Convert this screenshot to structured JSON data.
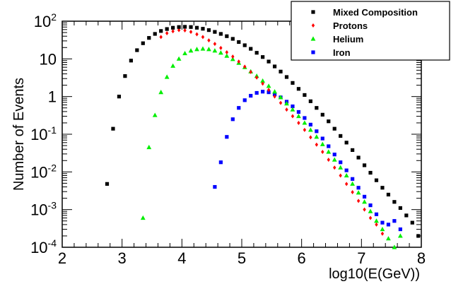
{
  "chart_data": {
    "type": "scatter",
    "xlabel": "log10(E(GeV))",
    "ylabel": "Number of Events",
    "xlim": [
      2,
      8
    ],
    "ylim": [
      0.0001,
      100
    ],
    "yscale": "log",
    "x_ticks": [
      {
        "value": 2,
        "label": "2"
      },
      {
        "value": 3,
        "label": "3"
      },
      {
        "value": 4,
        "label": "4"
      },
      {
        "value": 5,
        "label": "5"
      },
      {
        "value": 6,
        "label": "6"
      },
      {
        "value": 7,
        "label": "7"
      },
      {
        "value": 8,
        "label": "8"
      }
    ],
    "y_ticks": [
      {
        "value": 100,
        "base": "10",
        "exp": "2"
      },
      {
        "value": 10,
        "base": "10",
        "exp": ""
      },
      {
        "value": 1,
        "base": "1",
        "exp": ""
      },
      {
        "value": 0.1,
        "base": "10",
        "exp": "-1"
      },
      {
        "value": 0.01,
        "base": "10",
        "exp": "-2"
      },
      {
        "value": 0.001,
        "base": "10",
        "exp": "-3"
      },
      {
        "value": 0.0001,
        "base": "10",
        "exp": "-4"
      }
    ],
    "legend_position": "top-right",
    "series": [
      {
        "name": "Mixed Composition",
        "color": "#000000",
        "marker": "square",
        "x": [
          2.75,
          2.85,
          2.95,
          3.05,
          3.15,
          3.25,
          3.35,
          3.45,
          3.55,
          3.65,
          3.75,
          3.85,
          3.95,
          4.05,
          4.15,
          4.25,
          4.35,
          4.45,
          4.55,
          4.65,
          4.75,
          4.85,
          4.95,
          5.05,
          5.15,
          5.25,
          5.35,
          5.45,
          5.55,
          5.65,
          5.75,
          5.85,
          5.95,
          6.05,
          6.15,
          6.25,
          6.35,
          6.45,
          6.55,
          6.65,
          6.75,
          6.85,
          6.95,
          7.05,
          7.15,
          7.25,
          7.35,
          7.45,
          7.55,
          7.65,
          7.75,
          7.85,
          7.95
        ],
        "y": [
          0.0048,
          0.14,
          1.0,
          3.5,
          9,
          17,
          26,
          36,
          46,
          55,
          62,
          67,
          70,
          71,
          70,
          67,
          63,
          58,
          52,
          46,
          40,
          34,
          28,
          23,
          18.5,
          14.5,
          11.2,
          8.5,
          6.3,
          4.6,
          3.3,
          2.3,
          1.6,
          1.1,
          0.75,
          0.5,
          0.33,
          0.22,
          0.14,
          0.09,
          0.06,
          0.038,
          0.024,
          0.015,
          0.0095,
          0.006,
          0.0038,
          0.0025,
          0.0016,
          0.0011,
          0.0007,
          0.00045,
          0.0002
        ]
      },
      {
        "name": "Protons",
        "color": "#ff0000",
        "marker": "diamond",
        "x": [
          3.65,
          3.75,
          3.85,
          3.95,
          4.05,
          4.15,
          4.25,
          4.35,
          4.45,
          4.55,
          4.65,
          4.75,
          4.85,
          4.95,
          5.05,
          5.15,
          5.25,
          5.35,
          5.45,
          5.55,
          5.65,
          5.75,
          5.85,
          5.95,
          6.05,
          6.15,
          6.25,
          6.35,
          6.45,
          6.55,
          6.65,
          6.75,
          6.85,
          6.95,
          7.05,
          7.15,
          7.25,
          7.35
        ],
        "y": [
          38,
          48,
          54,
          58,
          57,
          52,
          45,
          38,
          31,
          25,
          19.5,
          15,
          11.5,
          8.5,
          6.2,
          4.5,
          3.2,
          2.2,
          1.5,
          1.0,
          0.68,
          0.45,
          0.3,
          0.2,
          0.13,
          0.083,
          0.053,
          0.034,
          0.021,
          0.013,
          0.008,
          0.0048,
          0.0029,
          0.0017,
          0.001,
          0.0006,
          0.0004,
          0.00023
        ]
      },
      {
        "name": "Helium",
        "color": "#00ee00",
        "marker": "triangle",
        "x": [
          3.35,
          3.45,
          3.55,
          3.65,
          3.75,
          3.85,
          3.95,
          4.05,
          4.15,
          4.25,
          4.35,
          4.45,
          4.55,
          4.65,
          4.75,
          4.85,
          4.95,
          5.05,
          5.15,
          5.25,
          5.35,
          5.45,
          5.55,
          5.65,
          5.75,
          5.85,
          5.95,
          6.05,
          6.15,
          6.25,
          6.35,
          6.45,
          6.55,
          6.65,
          6.75,
          6.85,
          6.95,
          7.05,
          7.15,
          7.25,
          7.35,
          7.45,
          7.55,
          7.65
        ],
        "y": [
          0.0006,
          0.045,
          0.32,
          1.3,
          3.3,
          6.5,
          10,
          14,
          16.5,
          18,
          18.5,
          18,
          16.5,
          14.5,
          12,
          9.8,
          7.8,
          6,
          4.6,
          3.5,
          2.6,
          1.9,
          1.35,
          0.95,
          0.65,
          0.45,
          0.3,
          0.2,
          0.13,
          0.085,
          0.054,
          0.034,
          0.021,
          0.013,
          0.008,
          0.0048,
          0.0028,
          0.0016,
          0.0009,
          0.0005,
          0.0003,
          0.00017,
          0.0001,
          0.0002
        ]
      },
      {
        "name": "Iron",
        "color": "#0000ff",
        "marker": "square",
        "x": [
          4.55,
          4.65,
          4.75,
          4.85,
          4.95,
          5.05,
          5.15,
          5.25,
          5.35,
          5.45,
          5.55,
          5.65,
          5.75,
          5.85,
          5.95,
          6.05,
          6.15,
          6.25,
          6.35,
          6.45,
          6.55,
          6.65,
          6.75,
          6.85,
          6.95,
          7.05,
          7.15,
          7.25,
          7.35,
          7.45,
          7.55,
          7.65
        ],
        "y": [
          0.004,
          0.018,
          0.085,
          0.25,
          0.5,
          0.8,
          1.05,
          1.25,
          1.35,
          1.3,
          1.15,
          0.95,
          0.73,
          0.55,
          0.39,
          0.27,
          0.18,
          0.12,
          0.077,
          0.048,
          0.029,
          0.018,
          0.011,
          0.0065,
          0.0038,
          0.0022,
          0.0013,
          0.00075,
          0.00045,
          0.0004,
          0.0005,
          0.0003
        ]
      }
    ]
  }
}
